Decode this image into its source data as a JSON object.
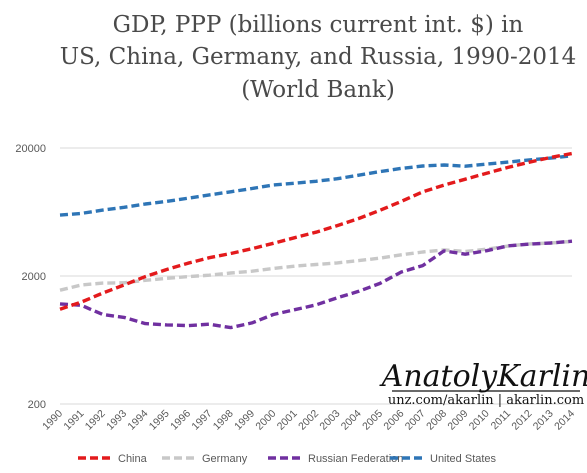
{
  "chart_data": {
    "type": "line",
    "title_lines": [
      "GDP, PPP (billions current int. $) in",
      "US, China, Germany, and Russia, 1990-2014",
      "(World Bank)"
    ],
    "xlabel": "",
    "ylabel": "",
    "y_scale": "log",
    "ylim": [
      200,
      20000
    ],
    "y_ticks": [
      "200",
      "2000",
      "20000"
    ],
    "y_tick_values": [
      200,
      2000,
      20000
    ],
    "grid": "horizontal",
    "legend_position": "bottom",
    "x": [
      "1990",
      "1991",
      "1992",
      "1993",
      "1994",
      "1995",
      "1996",
      "1997",
      "1998",
      "1999",
      "2000",
      "2001",
      "2002",
      "2003",
      "2004",
      "2005",
      "2006",
      "2007",
      "2008",
      "2009",
      "2010",
      "2011",
      "2012",
      "2013",
      "2014"
    ],
    "series": [
      {
        "name": "China",
        "color": "#e31a1c",
        "values": [
          1100,
          1250,
          1470,
          1700,
          1980,
          2250,
          2520,
          2780,
          3000,
          3270,
          3600,
          3980,
          4400,
          4950,
          5630,
          6520,
          7650,
          9080,
          10260,
          11400,
          12700,
          14100,
          15500,
          16900,
          18100
        ]
      },
      {
        "name": "Germany",
        "color": "#c8c8c8",
        "values": [
          1550,
          1700,
          1760,
          1770,
          1850,
          1920,
          1980,
          2030,
          2110,
          2180,
          2290,
          2390,
          2460,
          2530,
          2640,
          2760,
          2930,
          3080,
          3200,
          3110,
          3240,
          3430,
          3560,
          3620,
          3730
        ]
      },
      {
        "name": "Russian Federation",
        "color": "#7030a0",
        "values": [
          1210,
          1180,
          1000,
          950,
          850,
          830,
          820,
          840,
          790,
          860,
          1000,
          1090,
          1190,
          1350,
          1520,
          1750,
          2150,
          2410,
          3140,
          2960,
          3150,
          3440,
          3550,
          3620,
          3740
        ]
      },
      {
        "name": "United States",
        "color": "#2e75b6",
        "values": [
          5980,
          6170,
          6540,
          6880,
          7310,
          7660,
          8100,
          8610,
          9090,
          9660,
          10280,
          10620,
          10980,
          11510,
          12270,
          13090,
          13860,
          14480,
          14720,
          14420,
          14960,
          15520,
          16160,
          16690,
          17390
        ]
      }
    ]
  },
  "watermark": {
    "signature": "AnatolyKarlin",
    "url": "unz.com/akarlin | akarlin.com"
  }
}
